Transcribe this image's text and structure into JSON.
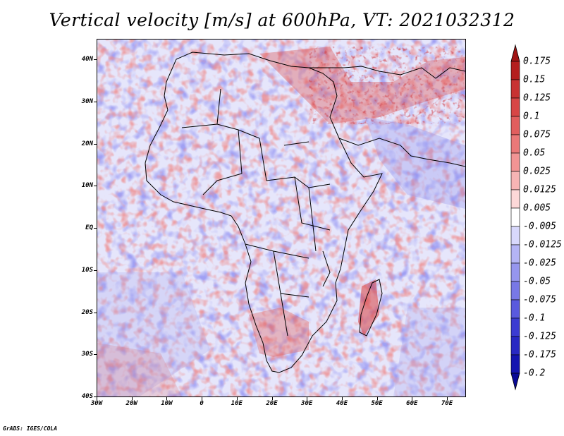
{
  "title": "Vertical velocity [m/s] at 600hPa, VT: 2021032312",
  "footer": "GrADS: IGES/COLA",
  "lat_labels": [
    "40N",
    "30N",
    "20N",
    "10N",
    "EQ",
    "10S",
    "20S",
    "30S",
    "40S"
  ],
  "lon_labels": [
    "30W",
    "20W",
    "10W",
    "0",
    "10E",
    "20E",
    "30E",
    "40E",
    "50E",
    "60E",
    "70E"
  ],
  "colorbar": {
    "labels": [
      "0.175",
      "0.15",
      "0.125",
      "0.1",
      "0.075",
      "0.05",
      "0.025",
      "0.0125",
      "0.005",
      "-0.005",
      "-0.0125",
      "-0.025",
      "-0.05",
      "-0.075",
      "-0.1",
      "-0.125",
      "-0.175",
      "-0.2"
    ],
    "colors": [
      "#a01414",
      "#b41e1e",
      "#c83232",
      "#d74646",
      "#e15e5e",
      "#eb7878",
      "#f29494",
      "#f7b4b4",
      "#fcd8d8",
      "#ffffff",
      "#d8d8fc",
      "#b4b4f5",
      "#9696ee",
      "#7878e6",
      "#5a5ade",
      "#3c3cd2",
      "#2828c3",
      "#1414b0",
      "#0a0a96"
    ]
  },
  "chart_data": {
    "type": "heatmap",
    "title": "Vertical velocity [m/s] at 600hPa, VT: 2021032312",
    "variable": "Vertical velocity",
    "unit": "m/s",
    "level": "600hPa",
    "valid_time": "2021032312",
    "lon_range": [
      -30,
      76
    ],
    "lat_range": [
      -40,
      45
    ],
    "levels": [
      -0.2,
      -0.175,
      -0.125,
      -0.1,
      -0.075,
      -0.05,
      -0.025,
      -0.0125,
      -0.005,
      0.005,
      0.0125,
      0.025,
      0.05,
      0.075,
      0.1,
      0.125,
      0.15,
      0.175
    ]
  }
}
